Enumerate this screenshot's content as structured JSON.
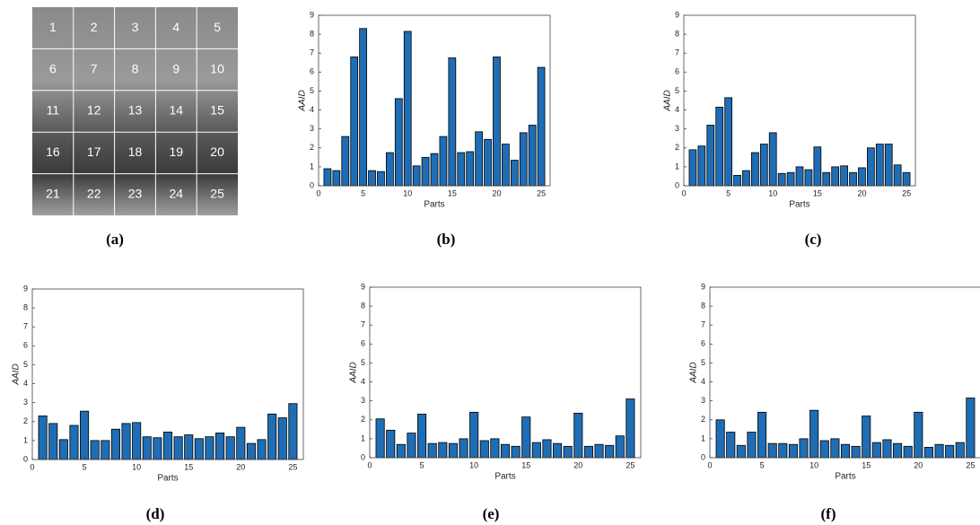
{
  "chart_data": [
    {
      "type": "image",
      "caption": "(a)",
      "labels": [
        "1",
        "2",
        "3",
        "4",
        "5",
        "6",
        "7",
        "8",
        "9",
        "10",
        "11",
        "12",
        "13",
        "14",
        "15",
        "16",
        "17",
        "18",
        "19",
        "20",
        "21",
        "22",
        "23",
        "24",
        "25"
      ]
    },
    {
      "type": "bar",
      "caption": "(b)",
      "xlabel": "Parts",
      "ylabel": "AAID",
      "color": "#1f6db5",
      "x": [
        1,
        2,
        3,
        4,
        5,
        6,
        7,
        8,
        9,
        10,
        11,
        12,
        13,
        14,
        15,
        16,
        17,
        18,
        19,
        20,
        21,
        22,
        23,
        24,
        25
      ],
      "values": [
        0.9,
        0.8,
        2.6,
        6.8,
        8.3,
        0.8,
        0.75,
        1.75,
        4.6,
        8.15,
        1.05,
        1.5,
        1.7,
        2.6,
        6.75,
        1.75,
        1.8,
        2.85,
        2.45,
        6.8,
        2.2,
        1.35,
        2.8,
        3.2,
        6.25
      ],
      "xlim": [
        0,
        26
      ],
      "xticks": [
        0,
        5,
        10,
        15,
        20,
        25
      ],
      "ylim": [
        0,
        9
      ],
      "yticks": [
        0,
        1,
        2,
        3,
        4,
        5,
        6,
        7,
        8,
        9
      ]
    },
    {
      "type": "bar",
      "caption": "(c)",
      "xlabel": "Parts",
      "ylabel": "AAID",
      "color": "#1f6db5",
      "x": [
        1,
        2,
        3,
        4,
        5,
        6,
        7,
        8,
        9,
        10,
        11,
        12,
        13,
        14,
        15,
        16,
        17,
        18,
        19,
        20,
        21,
        22,
        23,
        24,
        25
      ],
      "values": [
        1.9,
        2.1,
        3.2,
        4.15,
        4.65,
        0.55,
        0.8,
        1.75,
        2.2,
        2.8,
        0.65,
        0.7,
        1.0,
        0.85,
        2.05,
        0.7,
        1.0,
        1.05,
        0.7,
        0.95,
        2.0,
        2.2,
        2.2,
        1.1,
        0.7
      ],
      "xlim": [
        0,
        26
      ],
      "xticks": [
        0,
        5,
        10,
        15,
        20,
        25
      ],
      "ylim": [
        0,
        9
      ],
      "yticks": [
        0,
        1,
        2,
        3,
        4,
        5,
        6,
        7,
        8,
        9
      ]
    },
    {
      "type": "bar",
      "caption": "(d)",
      "xlabel": "Parts",
      "ylabel": "AAID",
      "color": "#1f6db5",
      "x": [
        1,
        2,
        3,
        4,
        5,
        6,
        7,
        8,
        9,
        10,
        11,
        12,
        13,
        14,
        15,
        16,
        17,
        18,
        19,
        20,
        21,
        22,
        23,
        24,
        25
      ],
      "values": [
        2.3,
        1.9,
        1.05,
        1.8,
        2.55,
        1.0,
        1.0,
        1.6,
        1.9,
        1.95,
        1.2,
        1.15,
        1.45,
        1.2,
        1.3,
        1.1,
        1.2,
        1.4,
        1.2,
        1.7,
        0.85,
        1.05,
        2.4,
        2.2,
        2.95
      ],
      "xlim": [
        0,
        26
      ],
      "xticks": [
        0,
        5,
        10,
        15,
        20,
        25
      ],
      "ylim": [
        0,
        9
      ],
      "yticks": [
        0,
        1,
        2,
        3,
        4,
        5,
        6,
        7,
        8,
        9
      ]
    },
    {
      "type": "bar",
      "caption": "(e)",
      "xlabel": "Parts",
      "ylabel": "AAID",
      "color": "#1f6db5",
      "x": [
        1,
        2,
        3,
        4,
        5,
        6,
        7,
        8,
        9,
        10,
        11,
        12,
        13,
        14,
        15,
        16,
        17,
        18,
        19,
        20,
        21,
        22,
        23,
        24,
        25
      ],
      "values": [
        2.05,
        1.45,
        0.7,
        1.3,
        2.3,
        0.75,
        0.8,
        0.75,
        1.0,
        2.4,
        0.9,
        1.0,
        0.7,
        0.6,
        2.15,
        0.8,
        0.95,
        0.75,
        0.6,
        2.35,
        0.6,
        0.7,
        0.65,
        1.15,
        3.1
      ],
      "xlim": [
        0,
        26
      ],
      "xticks": [
        0,
        5,
        10,
        15,
        20,
        25
      ],
      "ylim": [
        0,
        9
      ],
      "yticks": [
        0,
        1,
        2,
        3,
        4,
        5,
        6,
        7,
        8,
        9
      ]
    },
    {
      "type": "bar",
      "caption": "(f)",
      "xlabel": "Parts",
      "ylabel": "AAID",
      "color": "#1f6db5",
      "x": [
        1,
        2,
        3,
        4,
        5,
        6,
        7,
        8,
        9,
        10,
        11,
        12,
        13,
        14,
        15,
        16,
        17,
        18,
        19,
        20,
        21,
        22,
        23,
        24,
        25
      ],
      "values": [
        2.0,
        1.35,
        0.65,
        1.35,
        2.4,
        0.75,
        0.75,
        0.7,
        1.0,
        2.5,
        0.9,
        1.0,
        0.7,
        0.6,
        2.2,
        0.8,
        0.95,
        0.75,
        0.6,
        2.4,
        0.55,
        0.7,
        0.65,
        0.8,
        3.15
      ],
      "xlim": [
        0,
        26
      ],
      "xticks": [
        0,
        5,
        10,
        15,
        20,
        25
      ],
      "ylim": [
        0,
        9
      ],
      "yticks": [
        0,
        1,
        2,
        3,
        4,
        5,
        6,
        7,
        8,
        9
      ]
    }
  ]
}
